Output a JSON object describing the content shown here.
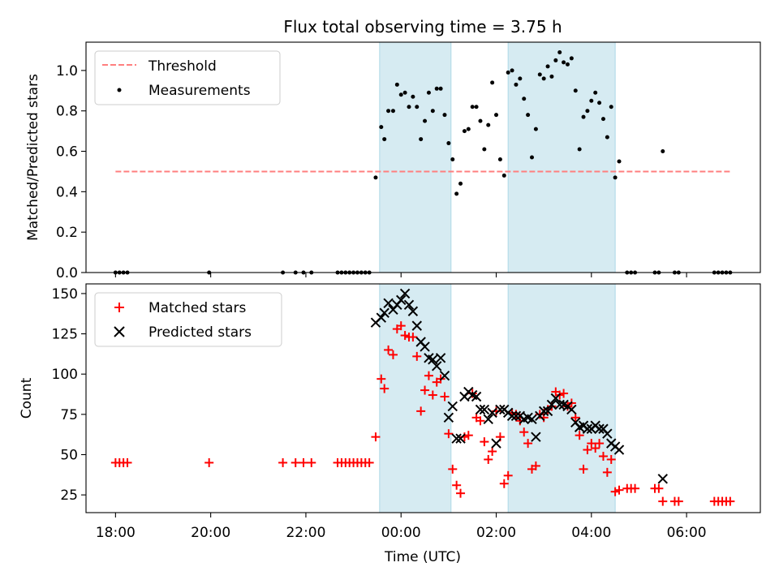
{
  "title": "Flux total observing time = 3.75 h",
  "colors": {
    "threshold": "#ff7f7f",
    "measurement": "#000000",
    "matched": "#ff0000",
    "predicted": "#000000",
    "span": "#add8e6"
  },
  "shared_x_axis": {
    "label": "Time (UTC)",
    "range_hours_since_18_00": [
      -0.62,
      13.55
    ],
    "ticks": [
      {
        "value": 0,
        "label": "18:00"
      },
      {
        "value": 2,
        "label": "20:00"
      },
      {
        "value": 4,
        "label": "22:00"
      },
      {
        "value": 6,
        "label": "00:00"
      },
      {
        "value": 8,
        "label": "02:00"
      },
      {
        "value": 10,
        "label": "04:00"
      },
      {
        "value": 12,
        "label": "06:00"
      }
    ]
  },
  "observing_windows": [
    {
      "start": "23:33",
      "end": "01:03"
    },
    {
      "start": "02:15",
      "end": "04:30"
    }
  ],
  "chart_data": [
    {
      "type": "scatter",
      "title": "Flux total observing time = 3.75 h",
      "xlabel": "",
      "ylabel": "Matched/Predicted stars",
      "ylim": [
        0,
        1.14
      ],
      "yticks": [
        "0.0",
        "0.2",
        "0.4",
        "0.6",
        "0.8",
        "1.0"
      ],
      "legend_position": "top-left",
      "threshold": {
        "name": "Threshold",
        "y": 0.5,
        "x_range": [
          "18:00",
          "06:55"
        ]
      },
      "series": [
        {
          "name": "Measurements",
          "points": [
            [
              "18:00",
              0.0
            ],
            [
              "18:05",
              0.0
            ],
            [
              "18:10",
              0.0
            ],
            [
              "18:15",
              0.0
            ],
            [
              "19:58",
              0.0
            ],
            [
              "21:31",
              0.0
            ],
            [
              "21:47",
              0.0
            ],
            [
              "21:57",
              0.0
            ],
            [
              "22:07",
              0.0
            ],
            [
              "22:40",
              0.0
            ],
            [
              "22:45",
              0.0
            ],
            [
              "22:50",
              0.0
            ],
            [
              "22:55",
              0.0
            ],
            [
              "23:00",
              0.0
            ],
            [
              "23:05",
              0.0
            ],
            [
              "23:10",
              0.0
            ],
            [
              "23:15",
              0.0
            ],
            [
              "23:20",
              0.0
            ],
            [
              "23:28",
              0.47
            ],
            [
              "23:35",
              0.72
            ],
            [
              "23:39",
              0.66
            ],
            [
              "23:44",
              0.8
            ],
            [
              "23:50",
              0.8
            ],
            [
              "23:55",
              0.93
            ],
            [
              "00:00",
              0.88
            ],
            [
              "00:05",
              0.89
            ],
            [
              "00:10",
              0.82
            ],
            [
              "00:15",
              0.87
            ],
            [
              "00:20",
              0.82
            ],
            [
              "00:25",
              0.66
            ],
            [
              "00:30",
              0.75
            ],
            [
              "00:35",
              0.89
            ],
            [
              "00:40",
              0.8
            ],
            [
              "00:45",
              0.91
            ],
            [
              "00:50",
              0.91
            ],
            [
              "00:55",
              0.78
            ],
            [
              "01:00",
              0.64
            ],
            [
              "01:05",
              0.56
            ],
            [
              "01:10",
              0.39
            ],
            [
              "01:15",
              0.44
            ],
            [
              "01:20",
              0.7
            ],
            [
              "01:25",
              0.71
            ],
            [
              "01:30",
              0.82
            ],
            [
              "01:35",
              0.82
            ],
            [
              "01:40",
              0.75
            ],
            [
              "01:45",
              0.61
            ],
            [
              "01:50",
              0.73
            ],
            [
              "01:55",
              0.94
            ],
            [
              "02:00",
              0.78
            ],
            [
              "02:05",
              0.56
            ],
            [
              "02:10",
              0.48
            ],
            [
              "02:15",
              0.99
            ],
            [
              "02:20",
              1.0
            ],
            [
              "02:25",
              0.93
            ],
            [
              "02:30",
              0.96
            ],
            [
              "02:35",
              0.86
            ],
            [
              "02:40",
              0.78
            ],
            [
              "02:45",
              0.57
            ],
            [
              "02:50",
              0.71
            ],
            [
              "02:55",
              0.98
            ],
            [
              "03:00",
              0.96
            ],
            [
              "03:05",
              1.02
            ],
            [
              "03:10",
              0.97
            ],
            [
              "03:15",
              1.05
            ],
            [
              "03:20",
              1.09
            ],
            [
              "03:25",
              1.04
            ],
            [
              "03:30",
              1.03
            ],
            [
              "03:35",
              1.06
            ],
            [
              "03:40",
              0.9
            ],
            [
              "03:45",
              0.61
            ],
            [
              "03:50",
              0.77
            ],
            [
              "03:55",
              0.8
            ],
            [
              "04:00",
              0.85
            ],
            [
              "04:05",
              0.89
            ],
            [
              "04:10",
              0.84
            ],
            [
              "04:15",
              0.76
            ],
            [
              "04:20",
              0.67
            ],
            [
              "04:25",
              0.82
            ],
            [
              "04:30",
              0.47
            ],
            [
              "04:35",
              0.55
            ],
            [
              "04:45",
              0.0
            ],
            [
              "04:50",
              0.0
            ],
            [
              "04:55",
              0.0
            ],
            [
              "05:20",
              0.0
            ],
            [
              "05:25",
              0.0
            ],
            [
              "05:30",
              0.6
            ],
            [
              "05:45",
              0.0
            ],
            [
              "05:50",
              0.0
            ],
            [
              "06:35",
              0.0
            ],
            [
              "06:40",
              0.0
            ],
            [
              "06:45",
              0.0
            ],
            [
              "06:50",
              0.0
            ],
            [
              "06:55",
              0.0
            ]
          ]
        }
      ]
    },
    {
      "type": "scatter",
      "xlabel": "Time (UTC)",
      "ylabel": "Count",
      "ylim": [
        14,
        156
      ],
      "yticks": [
        "25",
        "50",
        "75",
        "100",
        "125",
        "150"
      ],
      "legend_position": "top-left",
      "series": [
        {
          "name": "Matched stars",
          "marker": "+",
          "points": [
            [
              "18:00",
              45
            ],
            [
              "18:05",
              45
            ],
            [
              "18:10",
              45
            ],
            [
              "18:15",
              45
            ],
            [
              "19:58",
              45
            ],
            [
              "21:31",
              45
            ],
            [
              "21:47",
              45
            ],
            [
              "21:57",
              45
            ],
            [
              "22:07",
              45
            ],
            [
              "22:40",
              45
            ],
            [
              "22:45",
              45
            ],
            [
              "22:50",
              45
            ],
            [
              "22:55",
              45
            ],
            [
              "23:00",
              45
            ],
            [
              "23:05",
              45
            ],
            [
              "23:10",
              45
            ],
            [
              "23:15",
              45
            ],
            [
              "23:20",
              45
            ],
            [
              "23:28",
              61
            ],
            [
              "23:35",
              97
            ],
            [
              "23:39",
              91
            ],
            [
              "23:44",
              115
            ],
            [
              "23:50",
              112
            ],
            [
              "23:55",
              128
            ],
            [
              "00:00",
              130
            ],
            [
              "00:05",
              124
            ],
            [
              "00:10",
              123
            ],
            [
              "00:15",
              123
            ],
            [
              "00:20",
              111
            ],
            [
              "00:25",
              77
            ],
            [
              "00:30",
              90
            ],
            [
              "00:35",
              99
            ],
            [
              "00:40",
              87
            ],
            [
              "00:45",
              95
            ],
            [
              "00:50",
              97
            ],
            [
              "00:55",
              86
            ],
            [
              "01:00",
              63
            ],
            [
              "01:05",
              41
            ],
            [
              "01:10",
              31
            ],
            [
              "01:15",
              26
            ],
            [
              "01:20",
              61
            ],
            [
              "01:25",
              62
            ],
            [
              "01:30",
              88
            ],
            [
              "01:35",
              73
            ],
            [
              "01:40",
              71
            ],
            [
              "01:45",
              58
            ],
            [
              "01:50",
              47
            ],
            [
              "01:55",
              52
            ],
            [
              "02:00",
              77
            ],
            [
              "02:05",
              61
            ],
            [
              "02:10",
              32
            ],
            [
              "02:15",
              37
            ],
            [
              "02:20",
              76
            ],
            [
              "02:25",
              75
            ],
            [
              "02:30",
              71
            ],
            [
              "02:35",
              64
            ],
            [
              "02:40",
              57
            ],
            [
              "02:45",
              41
            ],
            [
              "02:50",
              43
            ],
            [
              "02:55",
              75
            ],
            [
              "03:00",
              73
            ],
            [
              "03:05",
              78
            ],
            [
              "03:10",
              80
            ],
            [
              "03:15",
              89
            ],
            [
              "03:20",
              87
            ],
            [
              "03:25",
              88
            ],
            [
              "03:30",
              80
            ],
            [
              "03:35",
              82
            ],
            [
              "03:40",
              73
            ],
            [
              "03:45",
              62
            ],
            [
              "03:50",
              41
            ],
            [
              "03:55",
              53
            ],
            [
              "04:00",
              57
            ],
            [
              "04:05",
              54
            ],
            [
              "04:10",
              57
            ],
            [
              "04:15",
              49
            ],
            [
              "04:20",
              39
            ],
            [
              "04:25",
              47
            ],
            [
              "04:30",
              27
            ],
            [
              "04:35",
              28
            ],
            [
              "04:45",
              29
            ],
            [
              "04:50",
              29
            ],
            [
              "04:55",
              29
            ],
            [
              "05:20",
              29
            ],
            [
              "05:25",
              29
            ],
            [
              "05:30",
              21
            ],
            [
              "05:45",
              21
            ],
            [
              "05:50",
              21
            ],
            [
              "06:35",
              21
            ],
            [
              "06:40",
              21
            ],
            [
              "06:45",
              21
            ],
            [
              "06:50",
              21
            ],
            [
              "06:55",
              21
            ]
          ]
        },
        {
          "name": "Predicted stars",
          "marker": "x",
          "points": [
            [
              "23:28",
              132
            ],
            [
              "23:35",
              135
            ],
            [
              "23:39",
              138
            ],
            [
              "23:44",
              144
            ],
            [
              "23:50",
              140
            ],
            [
              "23:55",
              143
            ],
            [
              "00:00",
              146
            ],
            [
              "00:05",
              150
            ],
            [
              "00:10",
              143
            ],
            [
              "00:15",
              139
            ],
            [
              "00:20",
              130
            ],
            [
              "00:25",
              120
            ],
            [
              "00:30",
              117
            ],
            [
              "00:35",
              110
            ],
            [
              "00:40",
              109
            ],
            [
              "00:45",
              105
            ],
            [
              "00:50",
              110
            ],
            [
              "00:55",
              99
            ],
            [
              "01:00",
              73
            ],
            [
              "01:05",
              80
            ],
            [
              "01:10",
              60
            ],
            [
              "01:15",
              60
            ],
            [
              "01:20",
              86
            ],
            [
              "01:25",
              89
            ],
            [
              "01:30",
              87
            ],
            [
              "01:35",
              86
            ],
            [
              "01:40",
              78
            ],
            [
              "01:45",
              78
            ],
            [
              "01:50",
              72
            ],
            [
              "01:55",
              76
            ],
            [
              "02:00",
              57
            ],
            [
              "02:05",
              78
            ],
            [
              "02:10",
              78
            ],
            [
              "02:15",
              76
            ],
            [
              "02:20",
              74
            ],
            [
              "02:25",
              74
            ],
            [
              "02:30",
              74
            ],
            [
              "02:35",
              72
            ],
            [
              "02:40",
              73
            ],
            [
              "02:45",
              72
            ],
            [
              "02:50",
              61
            ],
            [
              "02:55",
              74
            ],
            [
              "03:00",
              77
            ],
            [
              "03:05",
              77
            ],
            [
              "03:10",
              81
            ],
            [
              "03:15",
              85
            ],
            [
              "03:20",
              81
            ],
            [
              "03:25",
              81
            ],
            [
              "03:30",
              80
            ],
            [
              "03:35",
              78
            ],
            [
              "03:40",
              70
            ],
            [
              "03:45",
              67
            ],
            [
              "03:50",
              68
            ],
            [
              "03:55",
              66
            ],
            [
              "04:00",
              66
            ],
            [
              "04:05",
              68
            ],
            [
              "04:10",
              66
            ],
            [
              "04:15",
              66
            ],
            [
              "04:20",
              63
            ],
            [
              "04:25",
              57
            ],
            [
              "04:30",
              55
            ],
            [
              "04:35",
              53
            ],
            [
              "05:30",
              35
            ]
          ]
        }
      ]
    }
  ]
}
